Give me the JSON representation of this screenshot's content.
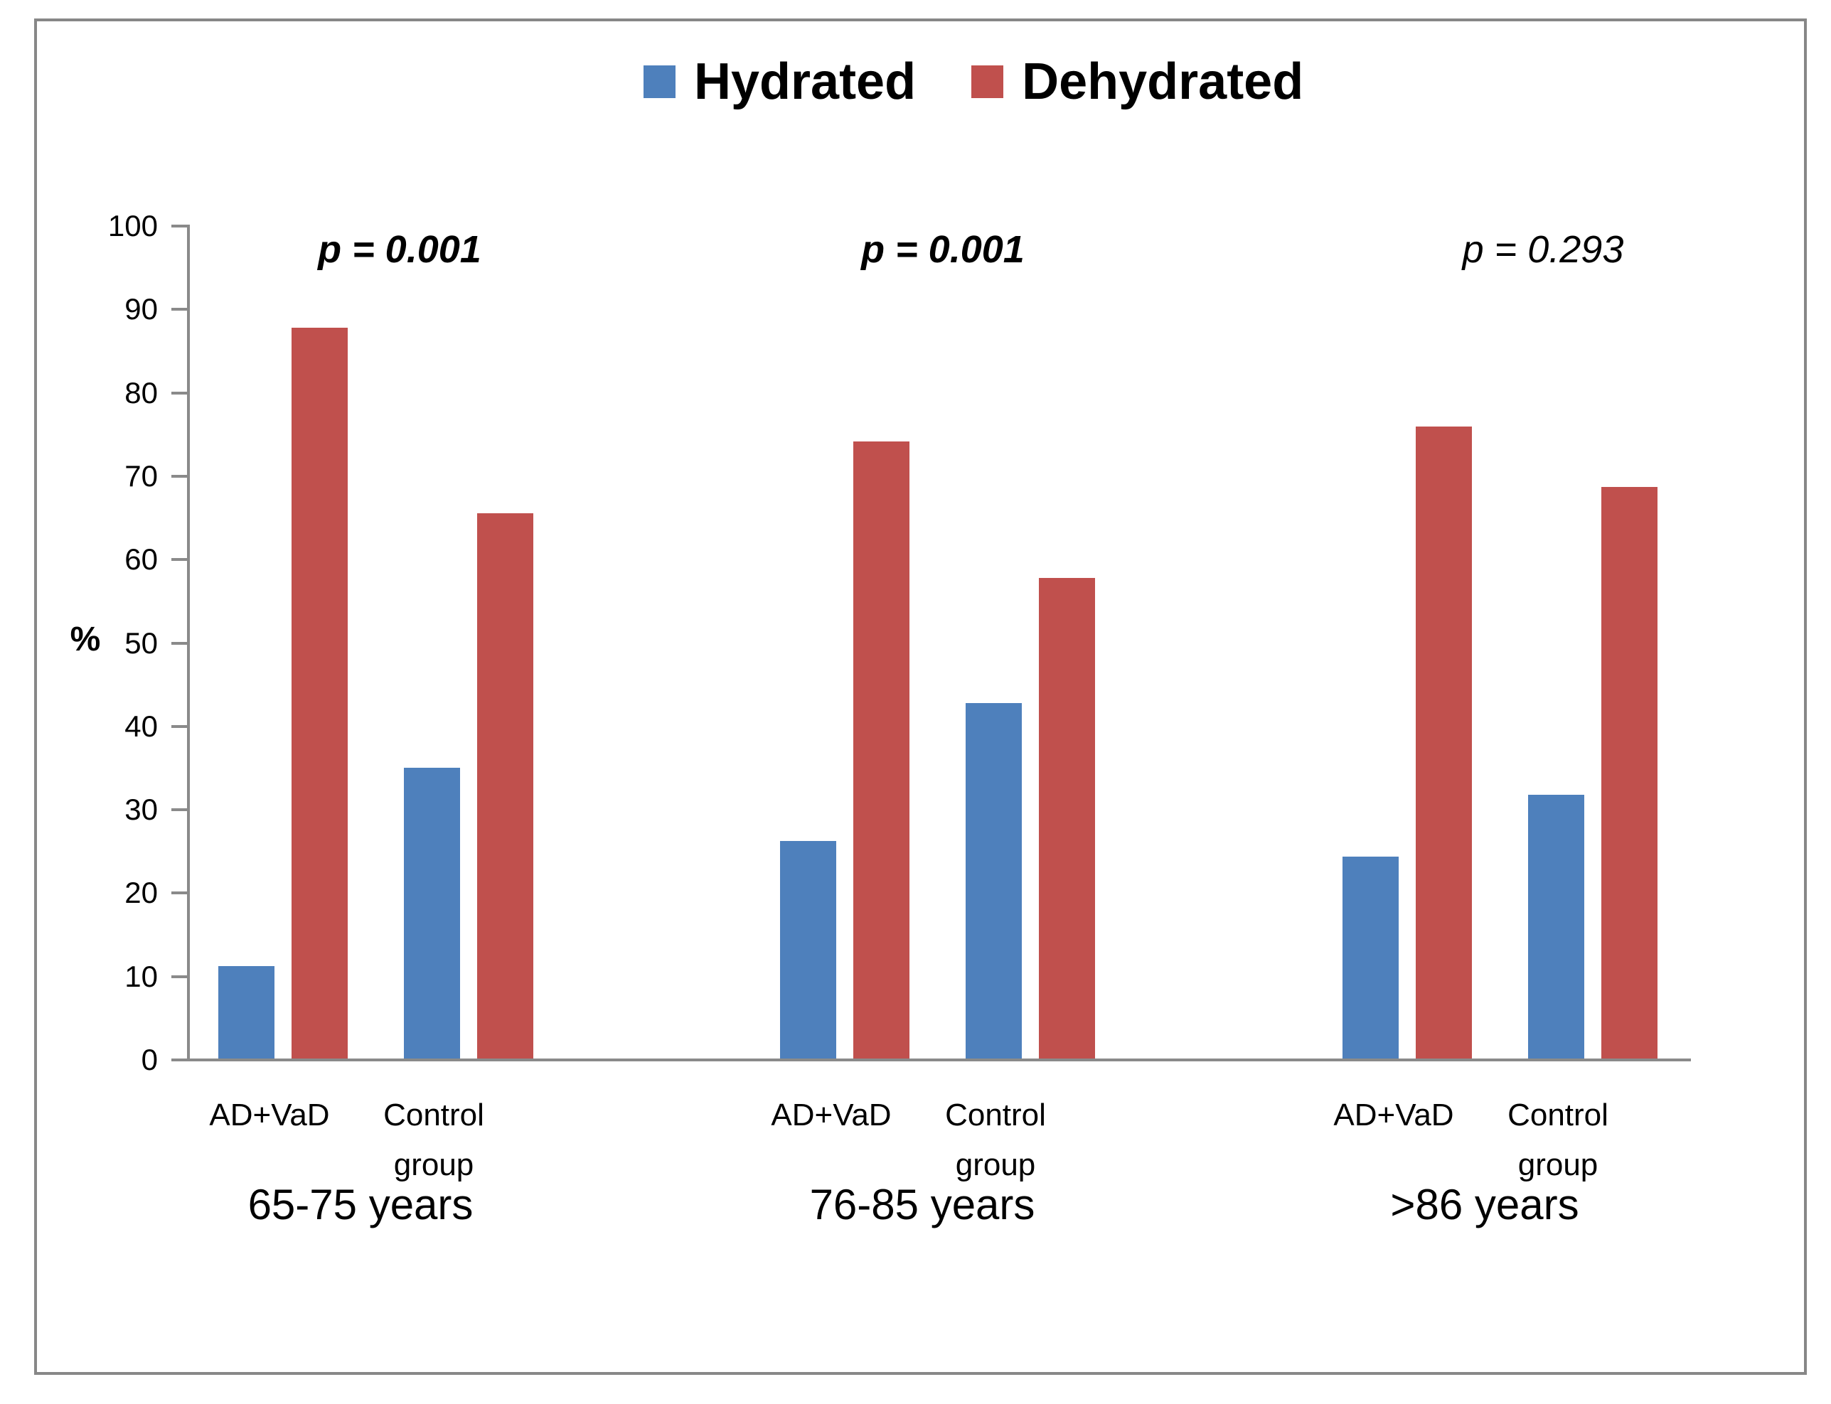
{
  "chart_data": {
    "type": "bar",
    "title": "",
    "ylabel": "%",
    "xlabel": "",
    "ylim": [
      0,
      100
    ],
    "yticks": [
      0,
      10,
      20,
      30,
      40,
      50,
      60,
      70,
      80,
      90,
      100
    ],
    "grid": false,
    "legend_position": "top-center",
    "series": [
      {
        "name": "Hydrated",
        "color": "#4e80bc"
      },
      {
        "name": "Dehydrated",
        "color": "#c0504d"
      }
    ],
    "groups": [
      {
        "label": "65-75 years",
        "p_value": "p = 0.001",
        "p_value_bold": true,
        "categories": [
          {
            "label": "AD+VaD",
            "values": {
              "Hydrated": 11.1,
              "Dehydrated": 87.6
            }
          },
          {
            "label": "Control group",
            "values": {
              "Hydrated": 34.9,
              "Dehydrated": 65.4
            }
          }
        ]
      },
      {
        "label": "76-85 years",
        "p_value": "p = 0.001",
        "p_value_bold": true,
        "categories": [
          {
            "label": "AD+VaD",
            "values": {
              "Hydrated": 26.1,
              "Dehydrated": 74.0
            }
          },
          {
            "label": "Control group",
            "values": {
              "Hydrated": 42.6,
              "Dehydrated": 57.6
            }
          }
        ]
      },
      {
        "label": ">86 years",
        "p_value": "p = 0.293",
        "p_value_bold": false,
        "categories": [
          {
            "label": "AD+VaD",
            "values": {
              "Hydrated": 24.2,
              "Dehydrated": 75.8
            }
          },
          {
            "label": "Control group",
            "values": {
              "Hydrated": 31.6,
              "Dehydrated": 68.5
            }
          }
        ]
      }
    ],
    "colors": {
      "axis": "#8a8a8a",
      "frame_border": "#878787",
      "background": "#ffffff",
      "text": "#000000"
    }
  }
}
